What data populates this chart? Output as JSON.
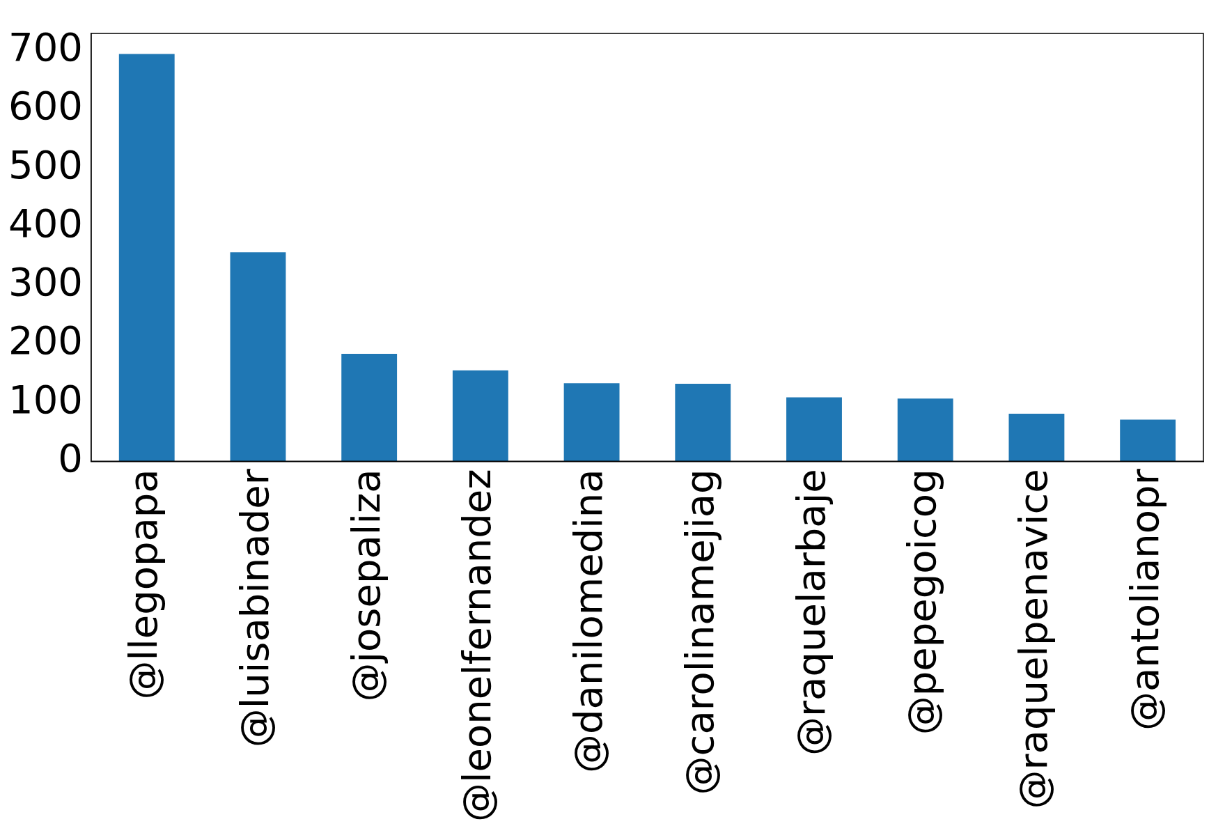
{
  "chart_data": {
    "type": "bar",
    "categories": [
      "@llegopapa",
      "@luisabinader",
      "@josepaliza",
      "@leonelfernandez",
      "@danilomedina",
      "@carolinamejiag",
      "@raquelarbaje",
      "@pepegoicog",
      "@raquelpenavice",
      "@antolianopr"
    ],
    "values": [
      694,
      356,
      183,
      155,
      133,
      132,
      109,
      107,
      81,
      71
    ],
    "color": "#1f77b4",
    "ylim": [
      0,
      729
    ],
    "yticks": [
      0,
      100,
      200,
      300,
      400,
      500,
      600,
      700
    ],
    "grid": false,
    "legend": false
  }
}
